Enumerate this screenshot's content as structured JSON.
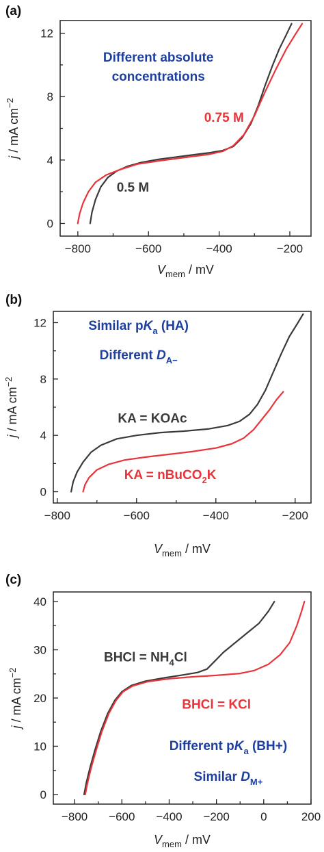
{
  "colors": {
    "black": "#3a3a3a",
    "red": "#e8343a",
    "blue": "#1f3f9e",
    "axis": "#222222"
  },
  "chart_data": [
    {
      "panel": "(a)",
      "type": "line",
      "xlabel": {
        "main": "V",
        "sub": "mem",
        "unit": " / mV"
      },
      "ylabel": {
        "main": "j",
        "unit": " / mA cm",
        "sup": "−2"
      },
      "xlim": [
        -850,
        -140
      ],
      "ylim": [
        -0.8,
        12.8
      ],
      "xticks": [
        -800,
        -600,
        -400,
        -200
      ],
      "xtick_labels": [
        "−800",
        "−600",
        "−400",
        "−200"
      ],
      "yticks": [
        0,
        4,
        8,
        12
      ],
      "ytick_labels": [
        "0",
        "4",
        "8",
        "12"
      ],
      "annotations": [
        {
          "color": "blue",
          "x": -572,
          "y": 10.2,
          "anchor": "middle",
          "parts": [
            {
              "t": "Different absolute"
            }
          ]
        },
        {
          "color": "blue",
          "x": -572,
          "y": 9.0,
          "anchor": "middle",
          "parts": [
            {
              "t": "concentrations"
            }
          ]
        },
        {
          "color": "red",
          "x": -330,
          "y": 6.4,
          "anchor": "end",
          "parts": [
            {
              "t": "0.75 M"
            }
          ]
        },
        {
          "color": "black",
          "x": -690,
          "y": 2.0,
          "anchor": "start",
          "parts": [
            {
              "t": "0.5 M"
            }
          ]
        }
      ],
      "series": [
        {
          "color": "black",
          "points": [
            [
              -765,
              0
            ],
            [
              -760,
              0.7
            ],
            [
              -750,
              1.5
            ],
            [
              -735,
              2.3
            ],
            [
              -715,
              2.9
            ],
            [
              -690,
              3.3
            ],
            [
              -660,
              3.6
            ],
            [
              -620,
              3.85
            ],
            [
              -570,
              4.05
            ],
            [
              -500,
              4.25
            ],
            [
              -430,
              4.45
            ],
            [
              -390,
              4.6
            ],
            [
              -360,
              4.85
            ],
            [
              -335,
              5.4
            ],
            [
              -310,
              6.3
            ],
            [
              -290,
              7.4
            ],
            [
              -270,
              8.7
            ],
            [
              -250,
              9.9
            ],
            [
              -230,
              11.0
            ],
            [
              -210,
              11.9
            ],
            [
              -195,
              12.6
            ]
          ]
        },
        {
          "color": "red",
          "points": [
            [
              -800,
              0
            ],
            [
              -795,
              0.6
            ],
            [
              -785,
              1.3
            ],
            [
              -770,
              2.0
            ],
            [
              -750,
              2.6
            ],
            [
              -720,
              3.05
            ],
            [
              -680,
              3.4
            ],
            [
              -630,
              3.75
            ],
            [
              -570,
              3.95
            ],
            [
              -500,
              4.15
            ],
            [
              -430,
              4.35
            ],
            [
              -390,
              4.55
            ],
            [
              -360,
              4.9
            ],
            [
              -330,
              5.6
            ],
            [
              -300,
              6.8
            ],
            [
              -270,
              8.3
            ],
            [
              -240,
              9.7
            ],
            [
              -210,
              11.0
            ],
            [
              -185,
              11.9
            ],
            [
              -165,
              12.6
            ]
          ]
        }
      ]
    },
    {
      "panel": "(b)",
      "type": "line",
      "xlabel": {
        "main": "V",
        "sub": "mem",
        "unit": " / mV"
      },
      "ylabel": {
        "main": "j",
        "unit": " / mA cm",
        "sup": "−2"
      },
      "xlim": [
        -810,
        -160
      ],
      "ylim": [
        -0.8,
        12.8
      ],
      "xticks": [
        -800,
        -600,
        -400,
        -200
      ],
      "xtick_labels": [
        "−800",
        "−600",
        "−400",
        "−200"
      ],
      "yticks": [
        0,
        4,
        8,
        12
      ],
      "ytick_labels": [
        "0",
        "4",
        "8",
        "12"
      ],
      "annotations": [
        {
          "color": "blue",
          "x": -595,
          "y": 11.5,
          "anchor": "middle",
          "parts": [
            {
              "t": "Similar p"
            },
            {
              "t": "K",
              "i": true
            },
            {
              "t": "a",
              "sub": true
            },
            {
              "t": " (HA)"
            }
          ]
        },
        {
          "color": "blue",
          "x": -595,
          "y": 9.4,
          "anchor": "middle",
          "parts": [
            {
              "t": "Different "
            },
            {
              "t": "D",
              "i": true
            },
            {
              "t": "A−",
              "sub": true
            }
          ]
        },
        {
          "color": "black",
          "x": -560,
          "y": 4.9,
          "anchor": "middle",
          "parts": [
            {
              "t": "KA = KOAc"
            }
          ]
        },
        {
          "color": "red",
          "x": -515,
          "y": 0.9,
          "anchor": "middle",
          "parts": [
            {
              "t": "KA = nBuCO"
            },
            {
              "t": "2",
              "sub": true
            },
            {
              "t": "K"
            }
          ]
        }
      ],
      "series": [
        {
          "color": "black",
          "points": [
            [
              -765,
              0
            ],
            [
              -760,
              0.7
            ],
            [
              -750,
              1.4
            ],
            [
              -735,
              2.1
            ],
            [
              -715,
              2.8
            ],
            [
              -690,
              3.3
            ],
            [
              -650,
              3.75
            ],
            [
              -600,
              4.0
            ],
            [
              -540,
              4.2
            ],
            [
              -480,
              4.3
            ],
            [
              -420,
              4.45
            ],
            [
              -370,
              4.7
            ],
            [
              -340,
              5.0
            ],
            [
              -315,
              5.5
            ],
            [
              -295,
              6.2
            ],
            [
              -275,
              7.2
            ],
            [
              -255,
              8.5
            ],
            [
              -235,
              9.8
            ],
            [
              -215,
              11.0
            ],
            [
              -195,
              11.9
            ],
            [
              -180,
              12.6
            ]
          ]
        },
        {
          "color": "red",
          "points": [
            [
              -735,
              0
            ],
            [
              -730,
              0.5
            ],
            [
              -720,
              1.0
            ],
            [
              -700,
              1.55
            ],
            [
              -670,
              1.95
            ],
            [
              -630,
              2.25
            ],
            [
              -580,
              2.45
            ],
            [
              -520,
              2.65
            ],
            [
              -460,
              2.85
            ],
            [
              -400,
              3.1
            ],
            [
              -360,
              3.4
            ],
            [
              -330,
              3.8
            ],
            [
              -305,
              4.4
            ],
            [
              -285,
              5.1
            ],
            [
              -265,
              5.8
            ],
            [
              -248,
              6.5
            ],
            [
              -230,
              7.1
            ]
          ]
        }
      ]
    },
    {
      "panel": "(c)",
      "type": "line",
      "xlabel": {
        "main": "V",
        "sub": "mem",
        "unit": " / mV"
      },
      "ylabel": {
        "main": "j",
        "unit": " / mA cm",
        "sup": "−2"
      },
      "xlim": [
        -890,
        200
      ],
      "ylim": [
        -2,
        42
      ],
      "xticks": [
        -800,
        -600,
        -400,
        -200,
        0,
        200
      ],
      "xtick_labels": [
        "−800",
        "−600",
        "−400",
        "−200",
        "0",
        "200"
      ],
      "yticks": [
        0,
        10,
        20,
        30,
        40
      ],
      "ytick_labels": [
        "0",
        "10",
        "20",
        "30",
        "40"
      ],
      "annotations": [
        {
          "color": "black",
          "x": -500,
          "y": 27.6,
          "anchor": "middle",
          "parts": [
            {
              "t": "BHCl = NH"
            },
            {
              "t": "4",
              "sub": true
            },
            {
              "t": "Cl"
            }
          ]
        },
        {
          "color": "red",
          "x": -200,
          "y": 17.8,
          "anchor": "middle",
          "parts": [
            {
              "t": "BHCl = KCl"
            }
          ]
        },
        {
          "color": "blue",
          "x": -150,
          "y": 9.2,
          "anchor": "middle",
          "parts": [
            {
              "t": "Different p"
            },
            {
              "t": "K",
              "i": true
            },
            {
              "t": "a",
              "sub": true
            },
            {
              "t": " (BH+)"
            }
          ]
        },
        {
          "color": "blue",
          "x": -150,
          "y": 2.8,
          "anchor": "middle",
          "parts": [
            {
              "t": "Similar "
            },
            {
              "t": "D",
              "i": true
            },
            {
              "t": "M+",
              "sub": true
            }
          ]
        }
      ],
      "series": [
        {
          "color": "black",
          "points": [
            [
              -760,
              0
            ],
            [
              -750,
              2.5
            ],
            [
              -735,
              5.5
            ],
            [
              -715,
              9.0
            ],
            [
              -690,
              13.0
            ],
            [
              -660,
              16.8
            ],
            [
              -630,
              19.5
            ],
            [
              -600,
              21.3
            ],
            [
              -560,
              22.6
            ],
            [
              -500,
              23.5
            ],
            [
              -420,
              24.2
            ],
            [
              -340,
              24.8
            ],
            [
              -280,
              25.3
            ],
            [
              -240,
              26.0
            ],
            [
              -210,
              27.5
            ],
            [
              -170,
              29.5
            ],
            [
              -120,
              31.5
            ],
            [
              -70,
              33.5
            ],
            [
              -20,
              35.5
            ],
            [
              20,
              38.0
            ],
            [
              45,
              40.0
            ]
          ]
        },
        {
          "color": "red",
          "points": [
            [
              -755,
              0
            ],
            [
              -745,
              2.5
            ],
            [
              -730,
              5.5
            ],
            [
              -710,
              9.0
            ],
            [
              -685,
              13.0
            ],
            [
              -655,
              16.8
            ],
            [
              -625,
              19.5
            ],
            [
              -595,
              21.3
            ],
            [
              -555,
              22.5
            ],
            [
              -490,
              23.4
            ],
            [
              -400,
              24.0
            ],
            [
              -300,
              24.4
            ],
            [
              -200,
              24.7
            ],
            [
              -100,
              25.1
            ],
            [
              -40,
              25.7
            ],
            [
              20,
              27.0
            ],
            [
              70,
              29.0
            ],
            [
              110,
              31.5
            ],
            [
              140,
              35.0
            ],
            [
              160,
              38.0
            ],
            [
              172,
              40.0
            ]
          ]
        }
      ]
    }
  ]
}
